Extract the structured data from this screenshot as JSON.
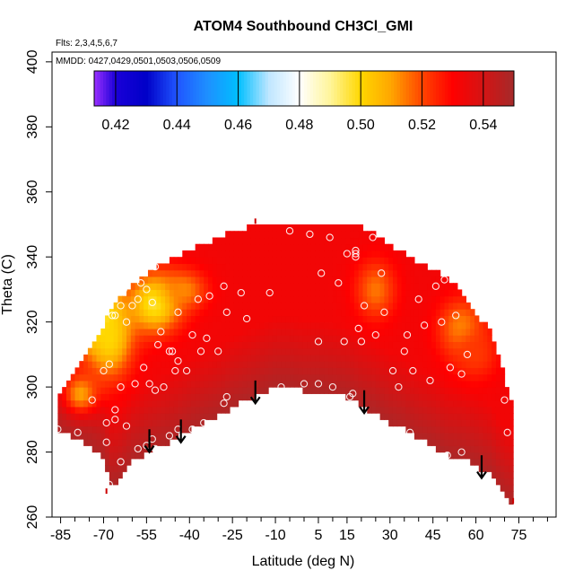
{
  "chart_data": {
    "type": "heatmap",
    "title": "ATOM4 Southbound CH3Cl_GMI",
    "flights_note": "Flts: 2,3,4,5,6,7",
    "dates_note": "MMDD: 0427,0429,0501,0503,0506,0509",
    "xlabel": "Latitude (deg N)",
    "ylabel": "Theta (C)",
    "xlim": [
      -88,
      88
    ],
    "ylim": [
      260,
      403
    ],
    "x_ticks": [
      -85,
      -70,
      -55,
      -40,
      -25,
      -10,
      5,
      15,
      30,
      45,
      60,
      75
    ],
    "x_tick_labels": [
      "-85",
      "-70",
      "-55",
      "-40",
      "-25",
      "-10",
      "5",
      "15",
      "30",
      "45",
      "60",
      "75"
    ],
    "x_minor_ticks": [
      -80,
      -75,
      -65,
      -60,
      -50,
      -45,
      -35,
      -30,
      -20,
      -15,
      -5,
      0,
      10,
      20,
      25,
      35,
      40,
      50,
      55,
      65,
      70,
      80,
      85
    ],
    "y_ticks": [
      260,
      280,
      300,
      320,
      340,
      360,
      380,
      400
    ],
    "y_tick_labels": [
      "260",
      "280",
      "300",
      "320",
      "340",
      "360",
      "380",
      "400"
    ],
    "colorbar": {
      "range": [
        0.413,
        0.55
      ],
      "ticks": [
        0.42,
        0.44,
        0.46,
        0.48,
        0.5,
        0.52,
        0.54
      ],
      "tick_labels": [
        "0.42",
        "0.44",
        "0.46",
        "0.48",
        "0.50",
        "0.52",
        "0.54"
      ],
      "stops": [
        {
          "v": 0.413,
          "color": "#9b30ff"
        },
        {
          "v": 0.42,
          "color": "#1a00d8"
        },
        {
          "v": 0.43,
          "color": "#0000c8"
        },
        {
          "v": 0.44,
          "color": "#2055ff"
        },
        {
          "v": 0.45,
          "color": "#1e90ff"
        },
        {
          "v": 0.46,
          "color": "#00bfff"
        },
        {
          "v": 0.47,
          "color": "#bfe6ff"
        },
        {
          "v": 0.48,
          "color": "#ffffff"
        },
        {
          "v": 0.49,
          "color": "#fff59a"
        },
        {
          "v": 0.5,
          "color": "#ffd700"
        },
        {
          "v": 0.51,
          "color": "#ffa500"
        },
        {
          "v": 0.52,
          "color": "#ff4500"
        },
        {
          "v": 0.53,
          "color": "#ff0000"
        },
        {
          "v": 0.54,
          "color": "#d41414"
        },
        {
          "v": 0.55,
          "color": "#a52a2a"
        }
      ]
    },
    "field": {
      "lat_bins": [
        -86,
        -80,
        -75,
        -70,
        -67,
        -64,
        -60,
        -55,
        -50,
        -45,
        -40,
        -35,
        -30,
        -25,
        -20,
        -15,
        -10,
        -5,
        0,
        5,
        10,
        15,
        20,
        25,
        30,
        35,
        40,
        45,
        50,
        55,
        60,
        65,
        70,
        72
      ],
      "floor": [
        287,
        284,
        282,
        278,
        270,
        272,
        277,
        280,
        282,
        284,
        287,
        289,
        291,
        294,
        296,
        298,
        300,
        300,
        299,
        299,
        298,
        297,
        294,
        292,
        289,
        287,
        284,
        282,
        279,
        278,
        276,
        273,
        266,
        265
      ],
      "top": [
        295,
        304,
        310,
        318,
        324,
        327,
        330,
        334,
        337,
        339,
        341,
        343,
        345,
        347,
        348,
        349,
        350,
        350,
        350,
        349,
        349,
        349,
        348,
        346,
        343,
        340,
        337,
        335,
        333,
        328,
        322,
        316,
        302,
        296
      ],
      "base_value": 0.533,
      "bottom_value": 0.548,
      "anomalies": [
        {
          "lat": -74,
          "theta": 322,
          "value": 0.476,
          "r_lat": 9,
          "r_theta": 9
        },
        {
          "lat": -68,
          "theta": 315,
          "value": 0.5,
          "r_lat": 8,
          "r_theta": 12
        },
        {
          "lat": -52,
          "theta": 326,
          "value": 0.495,
          "r_lat": 9,
          "r_theta": 9
        },
        {
          "lat": -42,
          "theta": 330,
          "value": 0.513,
          "r_lat": 8,
          "r_theta": 6
        },
        {
          "lat": -78,
          "theta": 298,
          "value": 0.51,
          "r_lat": 6,
          "r_theta": 6
        },
        {
          "lat": 25,
          "theta": 330,
          "value": 0.515,
          "r_lat": 7,
          "r_theta": 9
        },
        {
          "lat": 55,
          "theta": 318,
          "value": 0.512,
          "r_lat": 8,
          "r_theta": 9
        },
        {
          "lat": 60,
          "theta": 310,
          "value": 0.522,
          "r_lat": 8,
          "r_theta": 8
        }
      ]
    },
    "samples": [
      [
        -86,
        287
      ],
      [
        -79,
        286
      ],
      [
        -74,
        296
      ],
      [
        -71,
        274
      ],
      [
        -68,
        270
      ],
      [
        -69,
        283
      ],
      [
        -69,
        289
      ],
      [
        -66,
        293
      ],
      [
        -66,
        290
      ],
      [
        -64,
        277
      ],
      [
        -62,
        288
      ],
      [
        -58,
        281
      ],
      [
        -55,
        282
      ],
      [
        -53,
        284
      ],
      [
        -52,
        281
      ],
      [
        -47,
        285
      ],
      [
        -44,
        287
      ],
      [
        -39,
        287
      ],
      [
        -35,
        289
      ],
      [
        -28,
        295
      ],
      [
        -27,
        297
      ],
      [
        -70,
        305
      ],
      [
        -68,
        307
      ],
      [
        -64,
        300
      ],
      [
        -59,
        301
      ],
      [
        -56,
        306
      ],
      [
        -54,
        301
      ],
      [
        -52,
        299
      ],
      [
        -49,
        300
      ],
      [
        -45,
        305
      ],
      [
        -46,
        311
      ],
      [
        -44,
        308
      ],
      [
        -41,
        305
      ],
      [
        -74,
        322
      ],
      [
        -70,
        324
      ],
      [
        -69,
        325
      ],
      [
        -66,
        322
      ],
      [
        -64,
        325
      ],
      [
        -62,
        320
      ],
      [
        -60,
        325
      ],
      [
        -58,
        327
      ],
      [
        -55,
        330
      ],
      [
        -53,
        326
      ],
      [
        -51,
        313
      ],
      [
        -50,
        317
      ],
      [
        -47,
        311
      ],
      [
        -44,
        323
      ],
      [
        -39,
        316
      ],
      [
        -36,
        311
      ],
      [
        -34,
        315
      ],
      [
        -30,
        311
      ],
      [
        -37,
        327
      ],
      [
        -33,
        328
      ],
      [
        -28,
        331
      ],
      [
        -27,
        323
      ],
      [
        -22,
        329
      ],
      [
        -20,
        321
      ],
      [
        -68,
        326
      ],
      [
        -67,
        322
      ],
      [
        -63,
        330
      ],
      [
        -57,
        332
      ],
      [
        -52,
        337
      ],
      [
        -12,
        329
      ],
      [
        -5,
        348
      ],
      [
        2,
        347
      ],
      [
        6,
        335
      ],
      [
        5,
        314
      ],
      [
        9,
        346
      ],
      [
        12,
        332
      ],
      [
        14,
        314
      ],
      [
        15,
        341
      ],
      [
        18,
        341
      ],
      [
        18,
        340
      ],
      [
        18,
        342
      ],
      [
        19,
        318
      ],
      [
        21,
        325
      ],
      [
        24,
        346
      ],
      [
        27,
        335
      ],
      [
        -8,
        300
      ],
      [
        0,
        301
      ],
      [
        5,
        301
      ],
      [
        10,
        300
      ],
      [
        16,
        297
      ],
      [
        17,
        298
      ],
      [
        20,
        314
      ],
      [
        25,
        316
      ],
      [
        28,
        323
      ],
      [
        31,
        305
      ],
      [
        33,
        300
      ],
      [
        35,
        311
      ],
      [
        36,
        316
      ],
      [
        37,
        286
      ],
      [
        38,
        305
      ],
      [
        40,
        327
      ],
      [
        42,
        319
      ],
      [
        44,
        302
      ],
      [
        46,
        331
      ],
      [
        48,
        320
      ],
      [
        49,
        333
      ],
      [
        51,
        306
      ],
      [
        53,
        322
      ],
      [
        55,
        304
      ],
      [
        56,
        333
      ],
      [
        57,
        310
      ],
      [
        60,
        329
      ],
      [
        63,
        327
      ],
      [
        70,
        296
      ],
      [
        71,
        286
      ],
      [
        55,
        280
      ],
      [
        50,
        279
      ]
    ],
    "arrows": [
      {
        "lat": -54,
        "theta_top": 287,
        "theta_bottom": 280
      },
      {
        "lat": -43,
        "theta_top": 290,
        "theta_bottom": 283
      },
      {
        "lat": -17,
        "theta_top": 302,
        "theta_bottom": 295
      },
      {
        "lat": 21,
        "theta_top": 299,
        "theta_bottom": 292
      },
      {
        "lat": 62,
        "theta_top": 279,
        "theta_bottom": 272
      }
    ],
    "markers": [
      {
        "lat": -17,
        "theta": 351
      },
      {
        "lat": -69,
        "theta": 268
      },
      {
        "lat": 73,
        "theta": 265
      }
    ]
  }
}
